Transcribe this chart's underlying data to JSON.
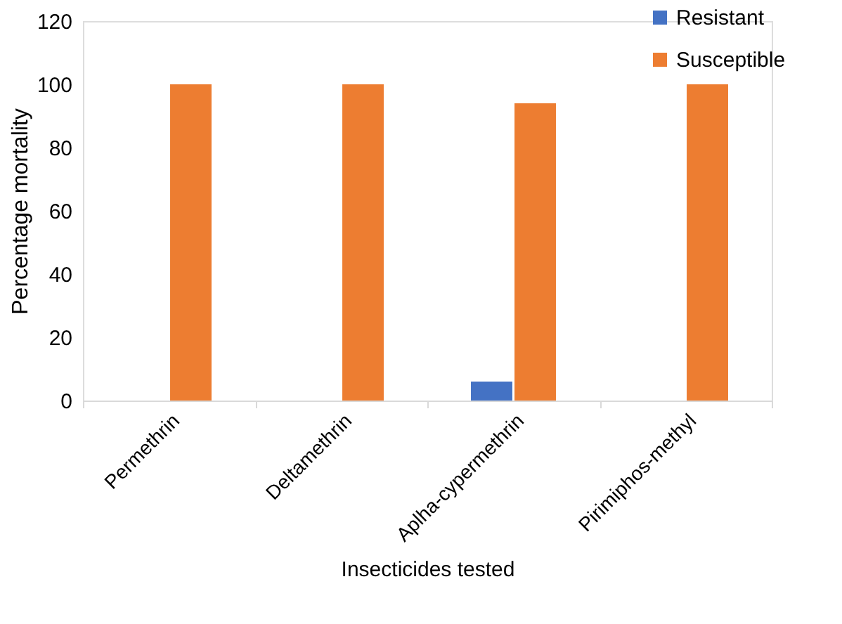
{
  "chart_data": {
    "type": "bar",
    "xlabel": "Insecticides tested",
    "ylabel": "Percentage mortality",
    "categories": [
      "Permethrin",
      "Deltamethrin",
      "Aplha-cypermethrin",
      "Pirimiphos-methyl"
    ],
    "series": [
      {
        "name": "Resistant",
        "color": "#4472c4",
        "values": [
          0,
          0,
          6,
          0
        ]
      },
      {
        "name": "Susceptible",
        "color": "#ed7d31",
        "values": [
          100,
          100,
          94,
          100
        ]
      }
    ],
    "ylim": [
      0,
      120
    ],
    "yticks": [
      0,
      20,
      40,
      60,
      80,
      100,
      120
    ],
    "grid": false,
    "legend": "top right"
  }
}
